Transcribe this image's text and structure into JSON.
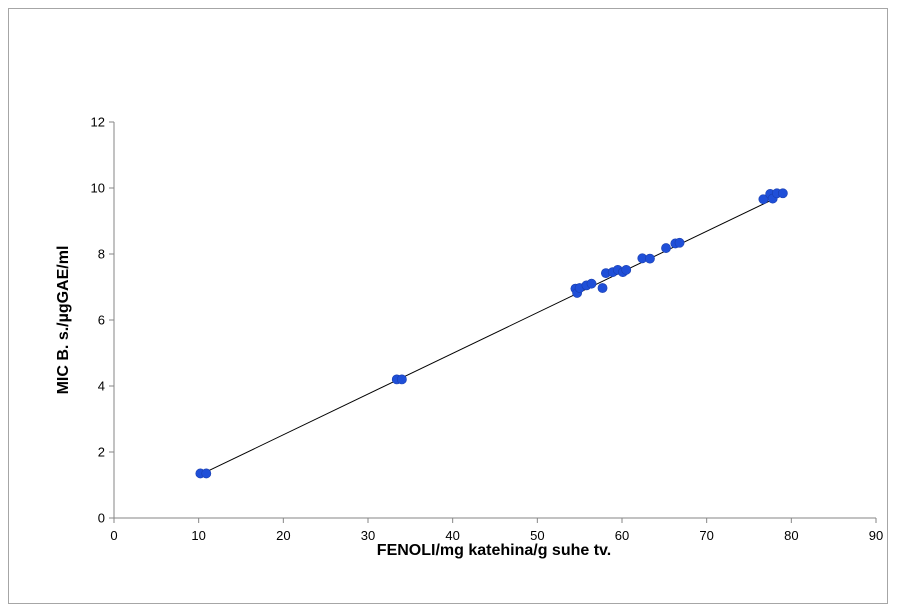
{
  "chart_data": {
    "type": "scatter",
    "title": "",
    "xlabel": "FENOLI/mg katehina/g suhe tv.",
    "ylabel": "MIC B. s./µgGAE/ml",
    "xlim": [
      0,
      90
    ],
    "ylim": [
      0,
      12
    ],
    "x_ticks": [
      0,
      10,
      20,
      30,
      40,
      50,
      60,
      70,
      80,
      90
    ],
    "y_ticks": [
      0,
      2,
      4,
      6,
      8,
      10,
      12
    ],
    "grid": false,
    "legend": "none",
    "marker_color": "#1f4fd8",
    "line_color": "#000000",
    "trendline": {
      "type": "linear",
      "x": [
        10.5,
        79.0
      ],
      "y": [
        1.35,
        9.8
      ]
    },
    "points": [
      {
        "x": 10.2,
        "y": 1.35
      },
      {
        "x": 10.9,
        "y": 1.35
      },
      {
        "x": 33.4,
        "y": 4.2
      },
      {
        "x": 34.0,
        "y": 4.2
      },
      {
        "x": 54.5,
        "y": 6.95
      },
      {
        "x": 54.7,
        "y": 6.82
      },
      {
        "x": 55.0,
        "y": 6.97
      },
      {
        "x": 55.8,
        "y": 7.05
      },
      {
        "x": 56.4,
        "y": 7.1
      },
      {
        "x": 57.7,
        "y": 6.97
      },
      {
        "x": 58.1,
        "y": 7.42
      },
      {
        "x": 58.9,
        "y": 7.45
      },
      {
        "x": 59.5,
        "y": 7.52
      },
      {
        "x": 60.1,
        "y": 7.45
      },
      {
        "x": 60.5,
        "y": 7.52
      },
      {
        "x": 62.4,
        "y": 7.87
      },
      {
        "x": 63.3,
        "y": 7.86
      },
      {
        "x": 65.2,
        "y": 8.18
      },
      {
        "x": 66.3,
        "y": 8.32
      },
      {
        "x": 66.8,
        "y": 8.34
      },
      {
        "x": 76.7,
        "y": 9.66
      },
      {
        "x": 77.5,
        "y": 9.82
      },
      {
        "x": 77.8,
        "y": 9.68
      },
      {
        "x": 78.3,
        "y": 9.84
      },
      {
        "x": 79.0,
        "y": 9.84
      }
    ]
  }
}
